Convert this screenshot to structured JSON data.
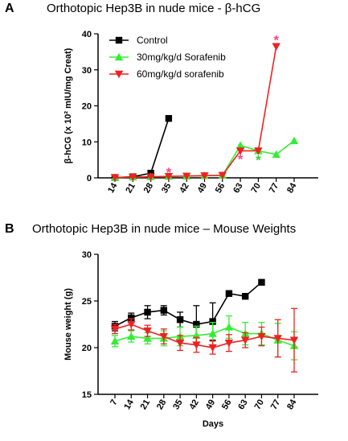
{
  "figure": {
    "panel_a_letter": "A",
    "panel_a_title": "Orthotopic Hep3B in nude mice - β-hCG",
    "panel_b_letter": "B",
    "panel_b_title": "Orthotopic Hep3B in nude mice – Mouse Weights"
  },
  "chart_data": [
    {
      "type": "line",
      "ylabel": "β-hCG (x 10² mIU/mg Creat)",
      "xlabel": "",
      "ylim": [
        0,
        40
      ],
      "yticks": [
        0,
        10,
        20,
        30,
        40
      ],
      "x_categories": [
        "14",
        "21",
        "28",
        "35",
        "42",
        "49",
        "56",
        "63",
        "70",
        "77",
        "84"
      ],
      "legend_position": "top-left",
      "series": [
        {
          "name": "Control",
          "color": "#000000",
          "marker": "square",
          "x": [
            14,
            21,
            28,
            35
          ],
          "y": [
            0.1,
            0.3,
            1.3,
            16.5
          ]
        },
        {
          "name": "30mg/kg/d Sorafenib",
          "color": "#33ee33",
          "marker": "triangle-up",
          "x": [
            14,
            21,
            28,
            35,
            42,
            49,
            56,
            63,
            70,
            77,
            84
          ],
          "y": [
            0.1,
            0.2,
            0.3,
            0.4,
            0.5,
            0.6,
            0.7,
            9.0,
            7.5,
            6.5,
            10.3
          ]
        },
        {
          "name": "60mg/kg/d sorafenib",
          "color": "#ee2222",
          "marker": "triangle-down",
          "x": [
            14,
            21,
            28,
            35,
            42,
            49,
            56,
            63,
            70,
            77
          ],
          "y": [
            0.1,
            0.2,
            0.3,
            0.4,
            0.5,
            0.6,
            0.7,
            7.5,
            7.5,
            36.5
          ]
        }
      ],
      "annotations": [
        {
          "text": "*",
          "color": "#ff4488",
          "x": 35,
          "y": 1.8
        },
        {
          "text": "*",
          "color": "#ff4488",
          "x": 63,
          "y": 5.5
        },
        {
          "text": "*",
          "color": "#33cc33",
          "x": 70,
          "y": 5.2
        },
        {
          "text": "*",
          "color": "#ff4488",
          "x": 77,
          "y": 38.5
        }
      ]
    },
    {
      "type": "line",
      "ylabel": "Mouse weight (g)",
      "xlabel": "Days",
      "ylim": [
        15,
        30
      ],
      "yticks": [
        15,
        20,
        25,
        30
      ],
      "x_categories": [
        "7",
        "14",
        "21",
        "28",
        "35",
        "42",
        "49",
        "56",
        "63",
        "70",
        "77",
        "84"
      ],
      "series": [
        {
          "name": "Control",
          "color": "#000000",
          "marker": "square",
          "x": [
            7,
            14,
            21,
            28,
            35,
            42,
            49,
            56,
            63,
            70
          ],
          "y": [
            22.3,
            23.2,
            23.8,
            24.0,
            23.0,
            22.5,
            22.8,
            25.8,
            25.5,
            27.0
          ],
          "err": [
            0.5,
            0.5,
            0.7,
            0.5,
            0.8,
            2.0,
            2.0,
            0,
            0,
            0
          ]
        },
        {
          "name": "30mg/kg/d Sorafenib",
          "color": "#33ee33",
          "marker": "triangle-up",
          "x": [
            7,
            14,
            21,
            28,
            35,
            42,
            49,
            56,
            63,
            70,
            77,
            84
          ],
          "y": [
            20.7,
            21.2,
            21.0,
            21.0,
            21.2,
            21.3,
            21.5,
            22.2,
            21.5,
            21.5,
            20.8,
            20.2
          ],
          "err": [
            0.6,
            0.6,
            0.6,
            0.8,
            1.0,
            1.0,
            1.2,
            1.2,
            1.2,
            1.2,
            1.8,
            1.5
          ]
        },
        {
          "name": "60mg/kg/d sorafenib",
          "color": "#ee2222",
          "marker": "triangle-down",
          "x": [
            7,
            14,
            21,
            28,
            35,
            42,
            49,
            56,
            63,
            70,
            77,
            84
          ],
          "y": [
            22.0,
            22.5,
            21.8,
            21.2,
            20.5,
            20.3,
            20.0,
            20.5,
            20.8,
            21.2,
            21.0,
            20.8
          ],
          "err": [
            0.5,
            0.6,
            0.6,
            0.8,
            0.8,
            0.8,
            0.7,
            0.9,
            0.8,
            1.0,
            2.0,
            3.4
          ]
        }
      ]
    }
  ]
}
